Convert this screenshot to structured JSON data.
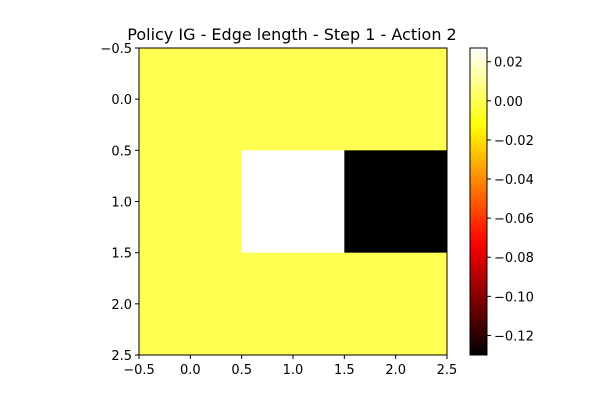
{
  "chart_data": {
    "type": "heatmap",
    "title": "Policy IG - Edge length - Step 1 - Action 2",
    "matrix": [
      [
        0.0,
        0.0,
        0.0
      ],
      [
        0.0,
        0.027,
        -0.13
      ],
      [
        0.0,
        0.0,
        0.0
      ]
    ],
    "xlim": [
      -0.5,
      2.5
    ],
    "ylim": [
      2.5,
      -0.5
    ],
    "x_ticks": [
      -0.5,
      0.0,
      0.5,
      1.0,
      1.5,
      2.0,
      2.5
    ],
    "y_ticks": [
      -0.5,
      0.0,
      0.5,
      1.0,
      1.5,
      2.0,
      2.5
    ],
    "x_tick_labels": [
      "−0.5",
      "0.0",
      "0.5",
      "1.0",
      "1.5",
      "2.0",
      "2.5"
    ],
    "y_tick_labels": [
      "−0.5",
      "0.0",
      "0.5",
      "1.0",
      "1.5",
      "2.0",
      "2.5"
    ],
    "colormap": "hot",
    "colorbar": {
      "vmin": -0.13,
      "vmax": 0.027,
      "ticks": [
        0.02,
        0.0,
        -0.02,
        -0.04,
        -0.06,
        -0.08,
        -0.1,
        -0.12
      ],
      "tick_labels": [
        "0.02",
        "0.00",
        "−0.02",
        "−0.04",
        "−0.06",
        "−0.08",
        "−0.10",
        "−0.12"
      ],
      "placement": "right"
    },
    "grid": false
  }
}
